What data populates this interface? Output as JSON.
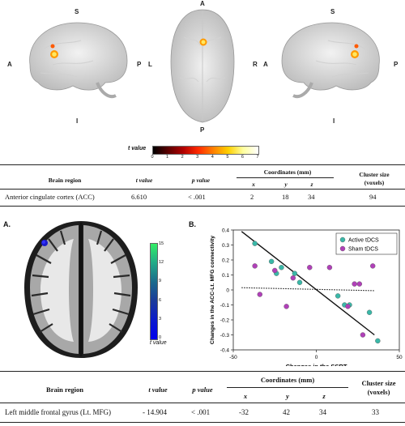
{
  "top_figure": {
    "orientation_labels": {
      "left_view": {
        "top": "S",
        "left": "A",
        "right": "P",
        "bottom": "I"
      },
      "top_view": {
        "top": "A",
        "left": "L",
        "right": "R",
        "bottom": "P"
      },
      "right_view": {
        "top": "S",
        "left": "A",
        "right": "P",
        "bottom": "I"
      }
    },
    "colorbar": {
      "label": "t value",
      "ticks": [
        "0",
        "1",
        "2",
        "3",
        "4",
        "5",
        "6",
        "7"
      ],
      "colors": [
        "#000000",
        "#5a0000",
        "#b00000",
        "#ff2a00",
        "#ff8000",
        "#ffd000",
        "#ffffa0",
        "#ffffff"
      ]
    }
  },
  "table1": {
    "headers": {
      "brain_region": "Brain region",
      "t_value": "t value",
      "p_value": "p value",
      "coordinates": "Coordinates (mm)",
      "x": "x",
      "y": "y",
      "z": "z",
      "cluster_size": "Cluster size\n(voxels)"
    },
    "row": {
      "region": "Anterior cingulate cortex (ACC)",
      "t": "6.610",
      "p": "< .001",
      "x": "2",
      "y": "18",
      "z": "34",
      "cluster": "94"
    }
  },
  "panel_a": {
    "label": "A.",
    "colorbar": {
      "label": "t value",
      "ticks": [
        "15",
        "12",
        "9",
        "6",
        "3",
        "0"
      ],
      "colors": [
        "#33ee66",
        "#22aa88",
        "#1a6a8c",
        "#1a3a9a",
        "#0a1acc",
        "#0000ee"
      ]
    }
  },
  "panel_b": {
    "label": "B."
  },
  "chart_data": {
    "type": "scatter",
    "xlabel": "Changes in the SSRT",
    "ylabel": "Changes in the ACC-Lt. MFG connectivity",
    "xlim": [
      -50,
      50
    ],
    "ylim": [
      -0.4,
      0.4
    ],
    "xticks": [
      "-50",
      "0",
      "50"
    ],
    "yticks": [
      "0.4",
      "0.3",
      "0.2",
      "0.1",
      "0",
      "-0.1",
      "-0.2",
      "-0.3",
      "-0.4"
    ],
    "legend_position": "top-right",
    "series": [
      {
        "name": "Active tDCS",
        "color": "#3ab8a8",
        "points": [
          [
            -37,
            0.31
          ],
          [
            -27,
            0.19
          ],
          [
            -24,
            0.11
          ],
          [
            -21,
            0.15
          ],
          [
            -13,
            0.11
          ],
          [
            -10,
            0.05
          ],
          [
            13,
            -0.04
          ],
          [
            17,
            -0.1
          ],
          [
            20,
            -0.1
          ],
          [
            32,
            -0.15
          ],
          [
            37,
            -0.34
          ]
        ],
        "fit": [
          [
            -45,
            0.39
          ],
          [
            35,
            -0.3
          ]
        ],
        "fit_style": "solid"
      },
      {
        "name": "Sham tDCS",
        "color": "#b040b8",
        "points": [
          [
            -37,
            0.16
          ],
          [
            -34,
            -0.03
          ],
          [
            -25,
            0.13
          ],
          [
            -18,
            -0.11
          ],
          [
            -14,
            0.08
          ],
          [
            -4,
            0.15
          ],
          [
            8,
            0.15
          ],
          [
            19,
            -0.11
          ],
          [
            23,
            0.04
          ],
          [
            26,
            0.04
          ],
          [
            28,
            -0.3
          ],
          [
            34,
            0.16
          ]
        ],
        "fit": [
          [
            -45,
            0.015
          ],
          [
            35,
            -0.005
          ]
        ],
        "fit_style": "dotted"
      }
    ]
  },
  "table2": {
    "headers": {
      "brain_region": "Brain region",
      "t_value": "t value",
      "p_value": "p value",
      "coordinates": "Coordinates (mm)",
      "x": "x",
      "y": "y",
      "z": "z",
      "cluster_size": "Cluster size\n(voxels)"
    },
    "row": {
      "region": "Left middle frontal gyrus (Lt. MFG)",
      "t": "- 14.904",
      "p": "< .001",
      "x": "-32",
      "y": "42",
      "z": "34",
      "cluster": "33"
    }
  }
}
